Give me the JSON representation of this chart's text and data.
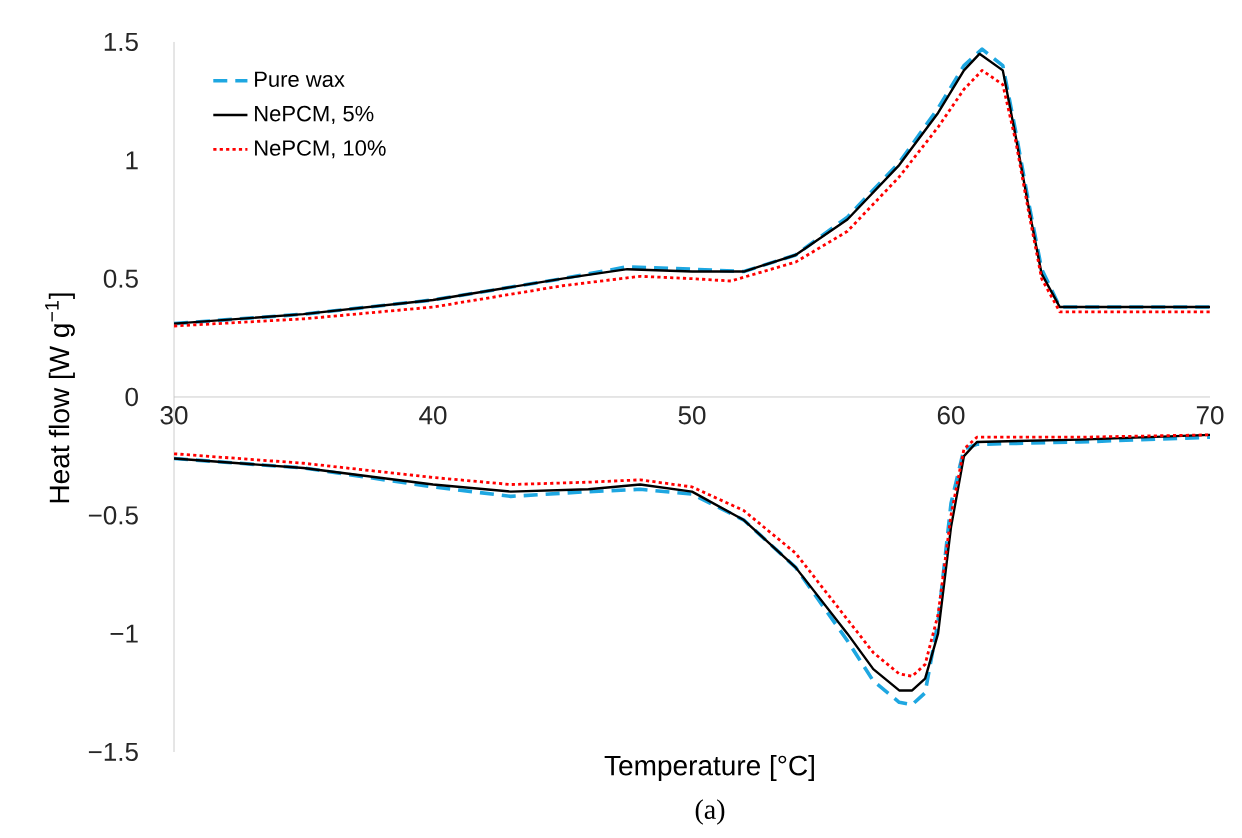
{
  "chart_data": {
    "type": "line",
    "xlabel": "Temperature [°C]",
    "ylabel": "Heat flow [W g$^{−1}$]",
    "annotations": [
      "(a)"
    ],
    "xlim": [
      30,
      70
    ],
    "ylim": [
      -1.5,
      1.5
    ],
    "xticks": [
      30,
      40,
      50,
      60,
      70
    ],
    "yticks": [
      {
        "value": -1.5,
        "label": "−1.5"
      },
      {
        "value": -1,
        "label": "−1"
      },
      {
        "value": -0.5,
        "label": "−0.5"
      },
      0,
      0.5,
      1,
      1.5
    ],
    "grid": false,
    "legend": "top left",
    "marker": "none",
    "series": [
      {
        "name": "Pure wax",
        "color": "#1ea7e1",
        "line_style": "dashed",
        "x": [
          30,
          35,
          40,
          45,
          47.5,
          50,
          52,
          54,
          56,
          58,
          59.5,
          60.5,
          61.2,
          62,
          62.5,
          63,
          63.5,
          64.2,
          70,
          null,
          30,
          35,
          40,
          43,
          46,
          48,
          50,
          52,
          54,
          56,
          57,
          58,
          58.5,
          59,
          59.5,
          60,
          60.5,
          61,
          65,
          70
        ],
        "values": [
          0.31,
          0.35,
          0.41,
          0.5,
          0.55,
          0.54,
          0.53,
          0.6,
          0.76,
          0.99,
          1.22,
          1.4,
          1.47,
          1.4,
          1.12,
          0.82,
          0.54,
          0.38,
          0.38,
          null,
          -0.26,
          -0.3,
          -0.38,
          -0.42,
          -0.4,
          -0.39,
          -0.41,
          -0.52,
          -0.72,
          -1.03,
          -1.2,
          -1.29,
          -1.3,
          -1.25,
          -0.95,
          -0.45,
          -0.22,
          -0.2,
          -0.19,
          -0.17
        ]
      },
      {
        "name": "NePCM, 5%",
        "color": "#000000",
        "line_style": "solid",
        "x": [
          30,
          35,
          40,
          45,
          47.5,
          50,
          52,
          54,
          56,
          58,
          59.5,
          60.5,
          61.1,
          62,
          62.5,
          63,
          63.5,
          64.2,
          70,
          null,
          30,
          35,
          40,
          43,
          46,
          48,
          50,
          52,
          54,
          56,
          57,
          58,
          58.5,
          59,
          59.5,
          60,
          60.5,
          61,
          65,
          70
        ],
        "values": [
          0.31,
          0.35,
          0.41,
          0.5,
          0.54,
          0.53,
          0.53,
          0.6,
          0.75,
          0.98,
          1.2,
          1.38,
          1.45,
          1.38,
          1.1,
          0.8,
          0.52,
          0.38,
          0.38,
          null,
          -0.26,
          -0.3,
          -0.37,
          -0.4,
          -0.39,
          -0.37,
          -0.4,
          -0.52,
          -0.72,
          -1.0,
          -1.15,
          -1.24,
          -1.24,
          -1.19,
          -1.0,
          -0.55,
          -0.25,
          -0.19,
          -0.18,
          -0.16
        ]
      },
      {
        "name": "NePCM, 10%",
        "color": "#ff0000",
        "line_style": "dotted",
        "x": [
          30,
          35,
          40,
          45,
          48,
          50,
          51.5,
          54,
          56,
          58,
          59.5,
          60.5,
          61.2,
          62,
          62.5,
          63,
          63.5,
          64.2,
          70,
          null,
          30,
          35,
          40,
          43,
          46,
          48,
          50,
          52,
          54,
          56,
          57,
          58,
          58.5,
          59,
          59.5,
          60,
          60.5,
          61,
          65,
          70
        ],
        "values": [
          0.3,
          0.33,
          0.38,
          0.47,
          0.51,
          0.5,
          0.49,
          0.57,
          0.7,
          0.93,
          1.14,
          1.3,
          1.38,
          1.32,
          1.08,
          0.78,
          0.5,
          0.36,
          0.36,
          null,
          -0.24,
          -0.28,
          -0.34,
          -0.37,
          -0.36,
          -0.35,
          -0.38,
          -0.48,
          -0.66,
          -0.94,
          -1.08,
          -1.17,
          -1.18,
          -1.13,
          -0.92,
          -0.5,
          -0.22,
          -0.17,
          -0.17,
          -0.16
        ]
      }
    ]
  }
}
